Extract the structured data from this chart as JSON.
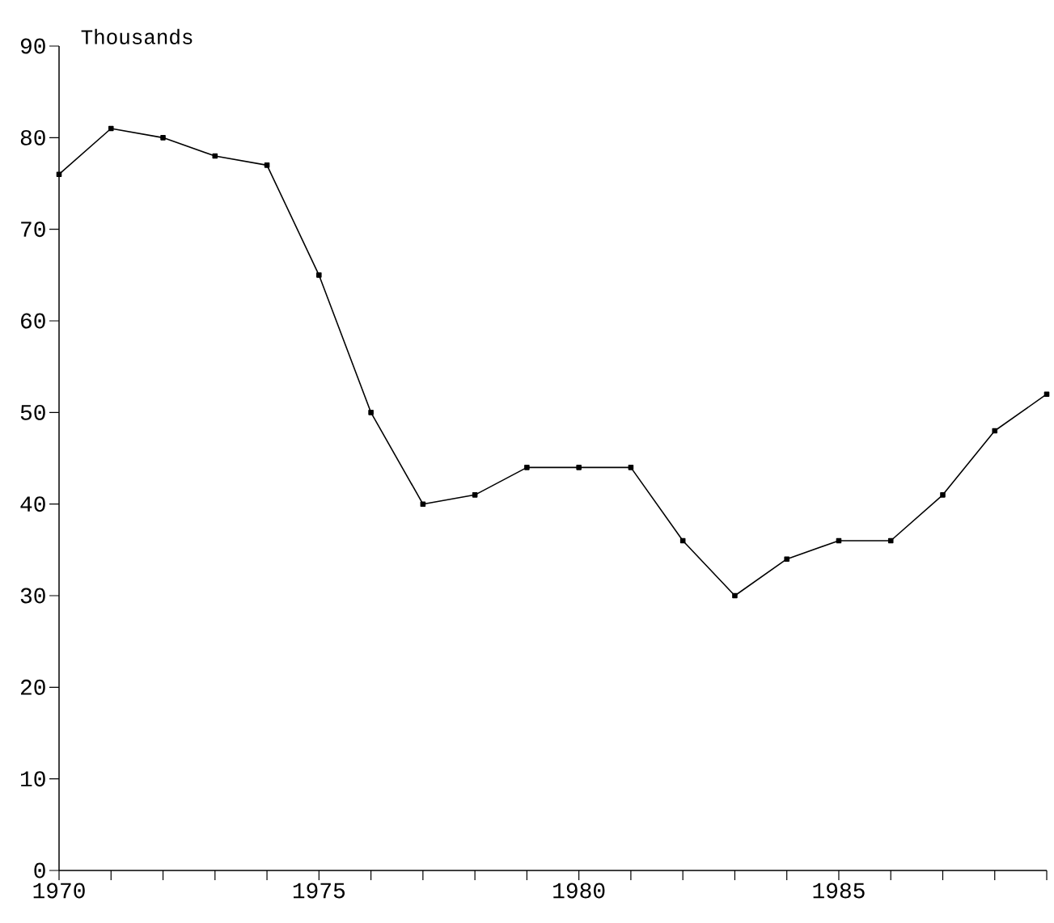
{
  "chart_data": {
    "type": "line",
    "ylabel": "Thousands",
    "x": [
      1970,
      1971,
      1972,
      1973,
      1974,
      1975,
      1976,
      1977,
      1978,
      1979,
      1980,
      1981,
      1982,
      1983,
      1984,
      1985,
      1986,
      1987,
      1988,
      1989
    ],
    "values": [
      76,
      81,
      80,
      78,
      77,
      65,
      50,
      40,
      41,
      44,
      44,
      44,
      36,
      30,
      34,
      36,
      36,
      41,
      48,
      52
    ],
    "color": "#000000",
    "marker": "square",
    "line_style": "solid",
    "xlim": [
      1970,
      1989
    ],
    "ylim": [
      0,
      90
    ],
    "xticks": [
      1970,
      {
        "value": 1971,
        "label": null
      },
      {
        "value": 1972,
        "label": null
      },
      {
        "value": 1973,
        "label": null
      },
      {
        "value": 1974,
        "label": null
      },
      1975,
      {
        "value": 1976,
        "label": null
      },
      {
        "value": 1977,
        "label": null
      },
      {
        "value": 1978,
        "label": null
      },
      {
        "value": 1979,
        "label": null
      },
      1980,
      {
        "value": 1981,
        "label": null
      },
      {
        "value": 1982,
        "label": null
      },
      {
        "value": 1983,
        "label": null
      },
      {
        "value": 1984,
        "label": null
      },
      1985,
      {
        "value": 1986,
        "label": null
      },
      {
        "value": 1987,
        "label": null
      },
      {
        "value": 1988,
        "label": null
      },
      {
        "value": 1989,
        "label": null
      }
    ],
    "yticks": [
      0,
      10,
      20,
      30,
      40,
      50,
      60,
      70,
      80,
      90
    ]
  }
}
